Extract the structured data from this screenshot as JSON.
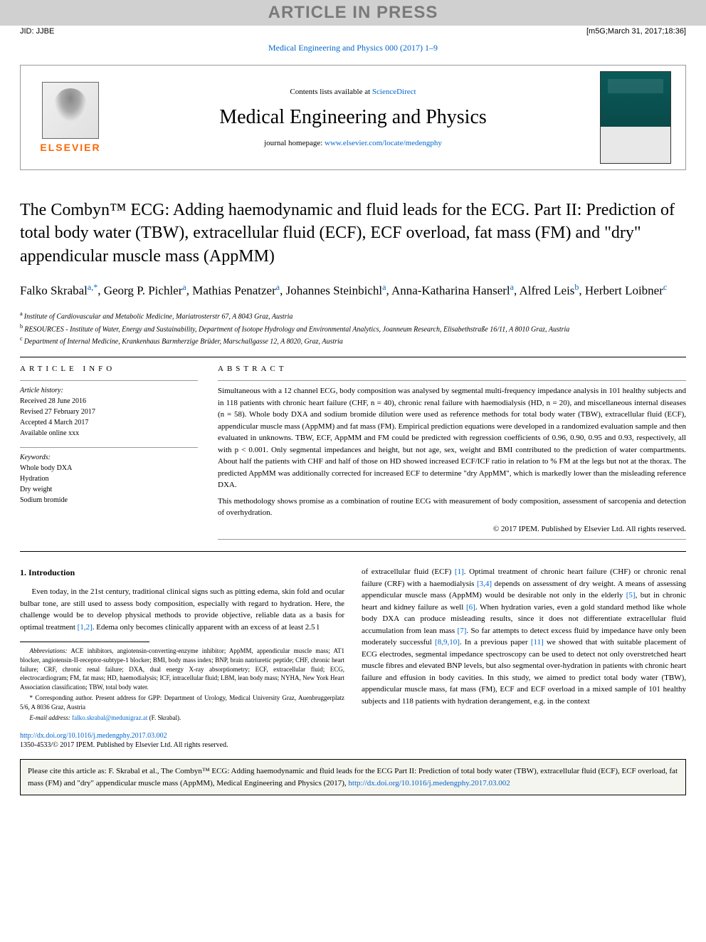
{
  "banner": "ARTICLE IN PRESS",
  "jid": {
    "left": "JID: JJBE",
    "right": "[m5G;March 31, 2017;18:36]"
  },
  "journalRef": {
    "prefix": "Medical Engineering and Physics 000 (2017) 1–9",
    "link": "Medical Engineering and Physics 000 (2017) 1–9"
  },
  "header": {
    "contentsPrefix": "Contents lists available at ",
    "contentsLink": "ScienceDirect",
    "journalName": "Medical Engineering and Physics",
    "homepagePrefix": "journal homepage: ",
    "homepageLink": "www.elsevier.com/locate/medengphy",
    "elsevier": "ELSEVIER"
  },
  "title": "The Combyn™ ECG: Adding haemodynamic and fluid leads for the ECG. Part II: Prediction of total body water (TBW), extracellular fluid (ECF), ECF overload, fat mass (FM) and \"dry\" appendicular muscle mass (AppMM)",
  "authors": [
    {
      "name": "Falko Skrabal",
      "marks": "a,*"
    },
    {
      "name": "Georg P. Pichler",
      "marks": "a"
    },
    {
      "name": "Mathias Penatzer",
      "marks": "a"
    },
    {
      "name": "Johannes Steinbichl",
      "marks": "a"
    },
    {
      "name": "Anna-Katharina Hanserl",
      "marks": "a"
    },
    {
      "name": "Alfred Leis",
      "marks": "b"
    },
    {
      "name": "Herbert Loibner",
      "marks": "c"
    }
  ],
  "affiliations": [
    {
      "sup": "a",
      "text": "Institute of Cardiovascular and Metabolic Medicine, Mariatrosterstr 67, A 8043 Graz, Austria"
    },
    {
      "sup": "b",
      "text": "RESOURCES - Institute of Water, Energy and Sustainability, Department of Isotope Hydrology and Environmental Analytics, Joanneum Research, Elisabethstraße 16/11, A 8010 Graz, Austria"
    },
    {
      "sup": "c",
      "text": "Department of Internal Medicine, Krankenhaus Barmherzige Brüder, Marschallgasse 12, A 8020, Graz, Austria"
    }
  ],
  "articleInfo": {
    "heading": "article info",
    "historyLabel": "Article history:",
    "history": [
      "Received 28 June 2016",
      "Revised 27 February 2017",
      "Accepted 4 March 2017",
      "Available online xxx"
    ],
    "keywordsLabel": "Keywords:",
    "keywords": [
      "Whole body DXA",
      "Hydration",
      "Dry weight",
      "Sodium bromide"
    ]
  },
  "abstract": {
    "heading": "abstract",
    "paragraphs": [
      "Simultaneous with a 12 channel ECG, body composition was analysed by segmental multi-frequency impedance analysis in 101 healthy subjects and in 118 patients with chronic heart failure (CHF, n = 40), chronic renal failure with haemodialysis (HD, n = 20), and miscellaneous internal diseases (n = 58). Whole body DXA and sodium bromide dilution were used as reference methods for total body water (TBW), extracellular fluid (ECF), appendicular muscle mass (AppMM) and fat mass (FM). Empirical prediction equations were developed in a randomized evaluation sample and then evaluated in unknowns. TBW, ECF, AppMM and FM could be predicted with regression coefficients of 0.96, 0.90, 0.95 and 0.93, respectively, all with p < 0.001. Only segmental impedances and height, but not age, sex, weight and BMI contributed to the prediction of water compartments. About half the patients with CHF and half of those on HD showed increased ECF/ICF ratio in relation to % FM at the legs but not at the thorax. The predicted AppMM was additionally corrected for increased ECF to determine \"dry AppMM\", which is markedly lower than the misleading reference DXA.",
      "This methodology shows promise as a combination of routine ECG with measurement of body composition, assessment of sarcopenia and detection of overhydration."
    ],
    "copyright": "© 2017 IPEM. Published by Elsevier Ltd. All rights reserved."
  },
  "body": {
    "section1Heading": "1. Introduction",
    "leftPara": "Even today, in the 21st century, traditional clinical signs such as pitting edema, skin fold and ocular bulbar tone, are still used to assess body composition, especially with regard to hydration. Here, the challenge would be to develop physical methods to provide objective, reliable data as a basis for optimal treatment ",
    "leftCite1": "[1,2]",
    "leftParaEnd": ". Edema only becomes clinically apparent with an excess of at least 2.5 l",
    "rightParts": [
      {
        "t": "of extracellular fluid (ECF) "
      },
      {
        "l": "[1]"
      },
      {
        "t": ". Optimal treatment of chronic heart failure (CHF) or chronic renal failure (CRF) with a haemodialysis "
      },
      {
        "l": "[3,4]"
      },
      {
        "t": " depends on assessment of dry weight. A means of assessing appendicular muscle mass (AppMM) would be desirable not only in the elderly "
      },
      {
        "l": "[5]"
      },
      {
        "t": ", but in chronic heart and kidney failure as well "
      },
      {
        "l": "[6]"
      },
      {
        "t": ". When hydration varies, even a gold standard method like whole body DXA can produce misleading results, since it does not differentiate extracellular fluid accumulation from lean mass "
      },
      {
        "l": "[7]"
      },
      {
        "t": ". So far attempts to detect excess fluid by impedance have only been moderately successful "
      },
      {
        "l": "[8,9,10]"
      },
      {
        "t": ". In a previous paper "
      },
      {
        "l": "[11]"
      },
      {
        "t": " we showed that with suitable placement of ECG electrodes, segmental impedance spectroscopy can be used to detect not only overstretched heart muscle fibres and elevated BNP levels, but also segmental over-hydration in patients with chronic heart failure and effusion in body cavities. In this study, we aimed to predict total body water (TBW), appendicular muscle mass, fat mass (FM), ECF and ECF overload in a mixed sample of 101 healthy subjects and 118 patients with hydration derangement, e.g. in the context"
      }
    ]
  },
  "footnotes": {
    "abbrevLabel": "Abbreviations:",
    "abbrev": " ACE inhibitors, angiotensin-converting-enzyme inhibitor; AppMM, appendicular muscle mass; AT1 blocker, angiotensin-II-receptor-subtype-1 blocker; BMI, body mass index; BNP, brain natriuretic peptide; CHF, chronic heart failure; CRF, chronic renal failure; DXA, dual energy X-ray absorptiometry; ECF, extracellular fluid; ECG, electrocardiogram; FM, fat mass; HD, haemodialysis; ICF, intracellular fluid; LBM, lean body mass; NYHA, New York Heart Association classification; TBW, total body water.",
    "corr": "* Corresponding author. Present address for GPP: Department of Urology, Medical University Graz, Auenbruggerplatz 5/6, A 8036 Graz, Austria",
    "emailLabel": "E-mail address: ",
    "email": "falko.skrabal@medunigraz.at",
    "emailSuffix": " (F. Skrabal)."
  },
  "doi": {
    "link": "http://dx.doi.org/10.1016/j.medengphy.2017.03.002",
    "issn": "1350-4533/© 2017 IPEM. Published by Elsevier Ltd. All rights reserved."
  },
  "citeBox": {
    "text": "Please cite this article as: F. Skrabal et al., The Combyn™ ECG: Adding haemodynamic and fluid leads for the ECG Part II: Prediction of total body water (TBW), extracellular fluid (ECF), ECF overload, fat mass (FM) and \"dry\" appendicular muscle mass (AppMM), Medical Engineering and Physics (2017), ",
    "link": "http://dx.doi.org/10.1016/j.medengphy.2017.03.002"
  },
  "colors": {
    "bannerBg": "#d0d0d0",
    "bannerText": "#7a7a7a",
    "link": "#0066cc",
    "elsevierOrange": "#ff6600",
    "citeBg": "#f5f5f0"
  }
}
